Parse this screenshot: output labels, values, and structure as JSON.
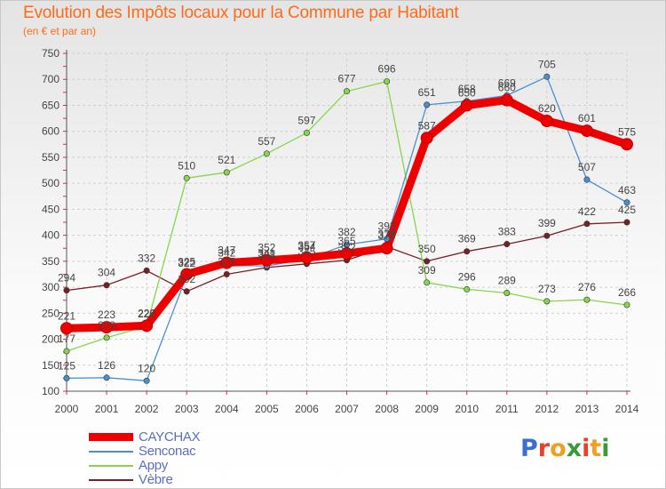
{
  "title": "Evolution des Impôts locaux pour la Commune par Habitant",
  "subtitle": "(en € et par an)",
  "logo": {
    "text": "Proxiti",
    "letter_colors": [
      "#3a6fd0",
      "#e8402a",
      "#f0a020",
      "#3a9a3a",
      "#e8402a",
      "#f0a020",
      "#3a9a3a"
    ]
  },
  "chart_data": {
    "type": "line",
    "x": [
      "2000",
      "2001",
      "2002",
      "2003",
      "2004",
      "2005",
      "2006",
      "2007",
      "2008",
      "2009",
      "2010",
      "2011",
      "2012",
      "2013",
      "2014"
    ],
    "ylim": [
      100,
      750
    ],
    "yticks": [
      "100",
      "150",
      "200",
      "250",
      "300",
      "350",
      "400",
      "450",
      "500",
      "550",
      "600",
      "650",
      "700",
      "750"
    ],
    "grid": true,
    "legend_position": "bottom-left",
    "series": [
      {
        "name": "Vèbre",
        "color": "#7a1f24",
        "values": [
          294,
          304,
          332,
          292,
          325,
          338,
          345,
          352,
          378,
          350,
          369,
          383,
          399,
          422,
          425
        ]
      },
      {
        "name": "Appy",
        "color": "#86d64b",
        "values": [
          177,
          203,
          225,
          510,
          521,
          557,
          597,
          677,
          696,
          309,
          296,
          289,
          273,
          276,
          266
        ]
      },
      {
        "name": "Senconac",
        "color": "#4a8fd0",
        "values": [
          125,
          126,
          120,
          322,
          342,
          341,
          354,
          382,
          393,
          651,
          658,
          669,
          705,
          507,
          463
        ]
      },
      {
        "name": "CAYCHAX",
        "color": "#ee0000",
        "values": [
          221,
          223,
          226,
          325,
          347,
          352,
          357,
          365,
          375,
          587,
          650,
          660,
          620,
          601,
          575
        ]
      }
    ]
  }
}
